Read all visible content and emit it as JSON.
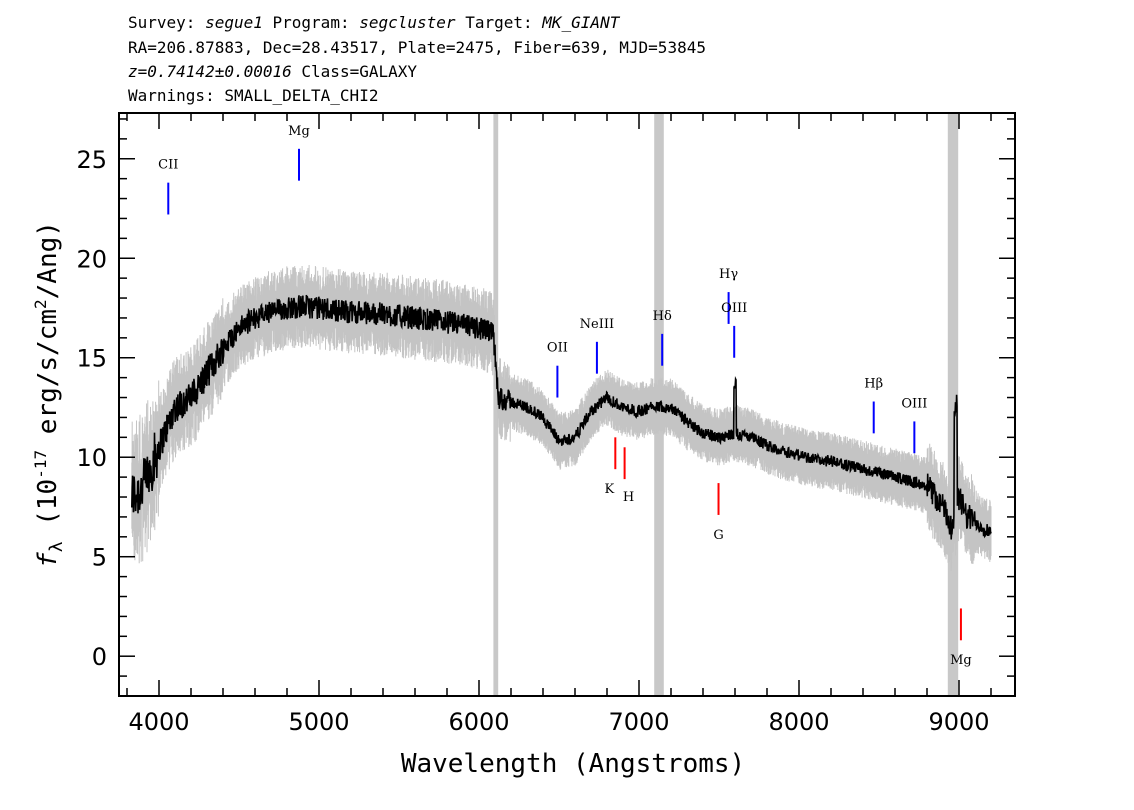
{
  "header": {
    "line1": {
      "survey_label": "Survey:",
      "survey": "segue1",
      "program_label": "Program:",
      "program": "segcluster",
      "target_label": "Target:",
      "target": "MK_GIANT"
    },
    "line2": "RA=206.87883, Dec=28.43517, Plate=2475, Fiber=639, MJD=53845",
    "line3": {
      "redshift": "z=0.74142±0.00016",
      "class": "Class=GALAXY"
    },
    "line4": "Warnings: SMALL_DELTA_CHI2"
  },
  "chart_data": {
    "type": "line",
    "xlabel": "Wavelength (Angstroms)",
    "ylabel": "f_λ (10^-17 erg/s/cm^2/Ang)",
    "xlim": [
      3750,
      9350
    ],
    "ylim": [
      -2,
      27.3
    ],
    "xticks": [
      4000,
      5000,
      6000,
      7000,
      8000,
      9000
    ],
    "yticks": [
      0,
      5,
      10,
      15,
      20,
      25
    ],
    "masked_regions": [
      [
        6090,
        6120
      ],
      [
        7095,
        7155
      ],
      [
        8930,
        8995
      ]
    ],
    "series": [
      {
        "style": "flux (black, noisy)",
        "color": "#000000",
        "x": [
          3830,
          3900,
          3950,
          4000,
          4050,
          4100,
          4200,
          4300,
          4400,
          4500,
          4600,
          4700,
          4800,
          4900,
          5000,
          5200,
          5400,
          5600,
          5800,
          6000,
          6090,
          6120,
          6200,
          6300,
          6400,
          6500,
          6600,
          6700,
          6800,
          6900,
          7000,
          7100,
          7200,
          7300,
          7400,
          7500,
          7600,
          7700,
          7800,
          7900,
          8000,
          8100,
          8200,
          8300,
          8400,
          8500,
          8600,
          8700,
          8800,
          8900,
          8950,
          9000,
          9050,
          9100,
          9150,
          9200
        ],
        "y": [
          8.0,
          8.5,
          9.5,
          10.5,
          11.5,
          12.5,
          13.0,
          14.2,
          15.5,
          16.5,
          17.0,
          17.3,
          17.5,
          17.6,
          17.5,
          17.3,
          17.2,
          17.0,
          16.8,
          16.5,
          16.2,
          13.0,
          12.8,
          12.5,
          12.0,
          10.8,
          11.0,
          12.3,
          13.0,
          12.5,
          12.3,
          12.6,
          12.5,
          11.8,
          11.2,
          11.0,
          11.2,
          11.0,
          10.6,
          10.3,
          10.1,
          9.9,
          9.8,
          9.6,
          9.4,
          9.2,
          9.0,
          8.8,
          8.6,
          7.5,
          6.5,
          8.0,
          7.0,
          6.8,
          6.4,
          6.3
        ]
      },
      {
        "style": "error envelope (gray)",
        "color": "#c4c4c4"
      }
    ],
    "emission_lines": [
      {
        "label": "CII",
        "wavelength": 4058,
        "color": "#0000ff"
      },
      {
        "label": "Mg",
        "wavelength": 4875,
        "color": "#0000ff"
      },
      {
        "label": "OII",
        "wavelength": 6490,
        "color": "#0000ff"
      },
      {
        "label": "NeIII",
        "wavelength": 6737,
        "color": "#0000ff"
      },
      {
        "label": "Hδ",
        "wavelength": 7145,
        "color": "#0000ff"
      },
      {
        "label": "Hγ",
        "wavelength": 7560,
        "color": "#0000ff"
      },
      {
        "label": "OIII",
        "wavelength": 7595,
        "color": "#0000ff"
      },
      {
        "label": "Hβ",
        "wavelength": 8467,
        "color": "#0000ff"
      },
      {
        "label": "OIII",
        "wavelength": 8721,
        "color": "#0000ff"
      }
    ],
    "absorption_lines": [
      {
        "label": "K",
        "wavelength": 6852,
        "color": "#ff0000"
      },
      {
        "label": "H",
        "wavelength": 6910,
        "color": "#ff0000"
      },
      {
        "label": "G",
        "wavelength": 7497,
        "color": "#ff0000"
      },
      {
        "label": "Mg",
        "wavelength": 9012,
        "color": "#ff0000"
      }
    ]
  }
}
